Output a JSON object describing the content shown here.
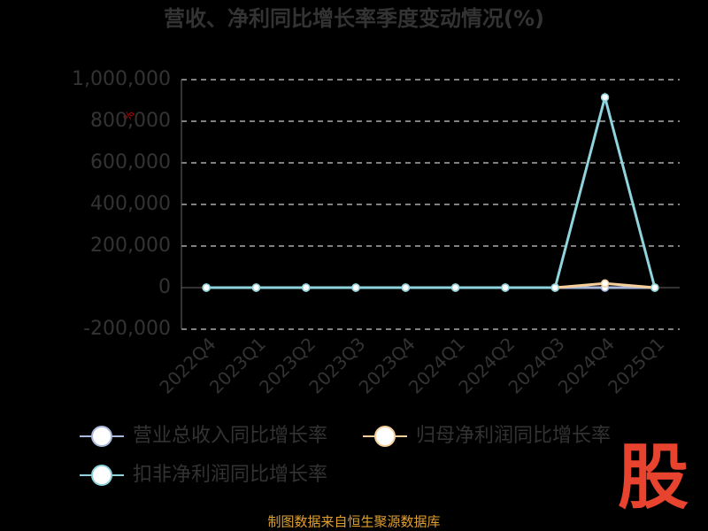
{
  "chart_data": {
    "type": "line",
    "title": "营收、净利同比增长率季度变动情况(%)",
    "y_label": "%",
    "categories": [
      "2022Q4",
      "2023Q1",
      "2023Q2",
      "2023Q3",
      "2023Q4",
      "2024Q1",
      "2024Q2",
      "2024Q3",
      "2024Q4",
      "2025Q1"
    ],
    "series": [
      {
        "name": "营业总收入同比增长率",
        "color": "#a9b9dc",
        "values": [
          0,
          0,
          0,
          0,
          0,
          0,
          0,
          0,
          0,
          0
        ]
      },
      {
        "name": "归母净利润同比增长率",
        "color": "#f6cf9a",
        "values": [
          0,
          0,
          0,
          0,
          0,
          0,
          0,
          0,
          20000,
          0
        ]
      },
      {
        "name": "扣非净利润同比增长率",
        "color": "#8fd3dc",
        "values": [
          0,
          0,
          0,
          0,
          0,
          0,
          0,
          0,
          915000,
          0
        ]
      }
    ],
    "ylim": [
      -200000,
      1000000
    ],
    "yticks": [
      {
        "value": -200000,
        "label": "-200,000"
      },
      0,
      {
        "value": 200000,
        "label": "200,000"
      },
      {
        "value": 400000,
        "label": "400,000"
      },
      {
        "value": 600000,
        "label": "600,000"
      },
      {
        "value": 800000,
        "label": "800,000"
      },
      {
        "value": 1000000,
        "label": "1,000,000"
      }
    ],
    "grid": true,
    "source": "制图数据来自恒生聚源数据库",
    "logo": "股"
  }
}
